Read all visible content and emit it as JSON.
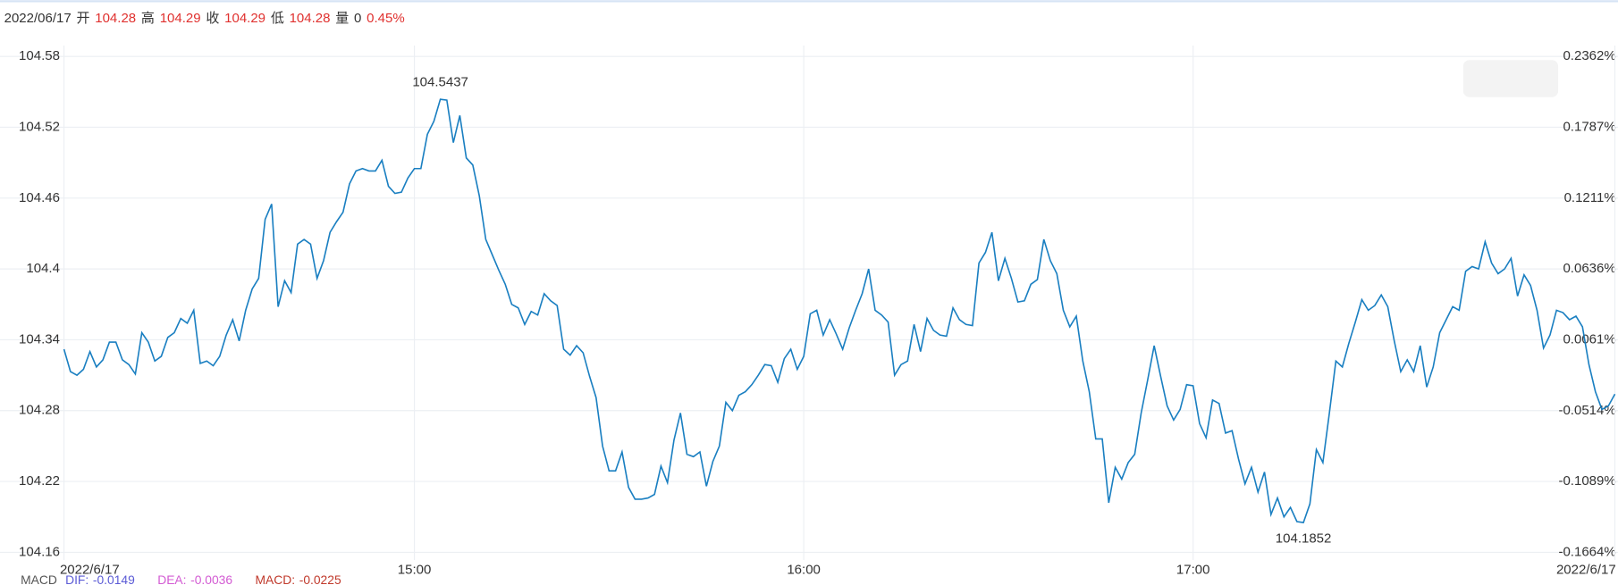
{
  "quote": {
    "date": "2022/06/17",
    "fields": [
      {
        "name": "开",
        "value": 104.28,
        "color": "#e0312f"
      },
      {
        "name": "高",
        "value": 104.29,
        "color": "#e0312f"
      },
      {
        "name": "收",
        "value": 104.29,
        "color": "#e0312f"
      },
      {
        "name": "低",
        "value": 104.28,
        "color": "#e0312f"
      },
      {
        "name": "量",
        "value": 0,
        "color": "#333333"
      }
    ],
    "change": {
      "value": 0.45,
      "label": "0.45%"
    }
  },
  "chart_data": {
    "type": "line",
    "color": "#1a7fc1",
    "grid": true,
    "up_color": "#e0312f",
    "down_color": "#1a9c1a",
    "values": [
      104.332,
      104.313,
      104.31,
      104.315,
      104.33,
      104.317,
      104.323,
      104.338,
      104.338,
      104.323,
      104.319,
      104.311,
      104.346,
      104.338,
      104.322,
      104.326,
      104.342,
      104.346,
      104.358,
      104.354,
      104.365,
      104.32,
      104.322,
      104.318,
      104.326,
      104.344,
      104.357,
      104.339,
      104.365,
      104.383,
      104.392,
      104.442,
      104.455,
      104.368,
      104.39,
      104.38,
      104.421,
      104.425,
      104.421,
      104.392,
      104.407,
      104.431,
      104.44,
      104.448,
      104.472,
      104.483,
      104.485,
      104.483,
      104.483,
      104.492,
      104.47,
      104.464,
      104.465,
      104.477,
      104.485,
      104.485,
      104.514,
      104.525,
      104.5437,
      104.543,
      104.507,
      104.53,
      104.494,
      104.488,
      104.462,
      104.425,
      104.412,
      104.399,
      104.387,
      104.37,
      104.367,
      104.353,
      104.364,
      104.361,
      104.379,
      104.373,
      104.369,
      104.332,
      104.327,
      104.335,
      104.329,
      104.309,
      104.291,
      104.25,
      104.229,
      104.229,
      104.245,
      104.215,
      104.205,
      104.205,
      104.206,
      104.209,
      104.233,
      104.219,
      104.255,
      104.278,
      104.243,
      104.241,
      104.245,
      104.216,
      104.237,
      104.25,
      104.287,
      104.28,
      104.293,
      104.296,
      104.302,
      104.31,
      104.319,
      104.318,
      104.304,
      104.324,
      104.332,
      104.315,
      104.326,
      104.362,
      104.365,
      104.344,
      104.357,
      104.345,
      104.332,
      104.35,
      104.365,
      104.379,
      104.4,
      104.365,
      104.361,
      104.355,
      104.31,
      104.319,
      104.322,
      104.353,
      104.33,
      104.358,
      104.348,
      104.344,
      104.343,
      104.367,
      104.357,
      104.353,
      104.352,
      104.405,
      104.414,
      104.431,
      104.39,
      104.409,
      104.392,
      104.372,
      104.373,
      104.387,
      104.391,
      104.425,
      104.407,
      104.396,
      104.365,
      104.351,
      104.36,
      104.322,
      104.296,
      104.256,
      104.256,
      104.202,
      104.232,
      104.222,
      104.236,
      104.243,
      104.278,
      104.306,
      104.335,
      104.309,
      104.284,
      104.272,
      104.281,
      104.302,
      104.301,
      104.269,
      104.257,
      104.289,
      104.286,
      104.261,
      104.263,
      104.239,
      104.218,
      104.232,
      104.211,
      104.228,
      104.192,
      104.206,
      104.19,
      104.198,
      104.186,
      104.1852,
      104.201,
      104.247,
      104.236,
      104.278,
      104.322,
      104.317,
      104.337,
      104.355,
      104.374,
      104.365,
      104.369,
      104.378,
      104.368,
      104.339,
      104.313,
      104.323,
      104.313,
      104.335,
      104.3,
      104.317,
      104.346,
      104.357,
      104.368,
      104.365,
      104.398,
      104.402,
      104.4,
      104.423,
      104.405,
      104.396,
      104.4,
      104.409,
      104.377,
      104.395,
      104.386,
      104.365,
      104.333,
      104.344,
      104.365,
      104.363,
      104.357,
      104.36,
      104.351,
      104.319,
      104.296,
      104.281,
      104.284,
      104.294
    ],
    "annotations": [
      "104.5437",
      "104.1852"
    ],
    "xlim": [
      0,
      239
    ],
    "xticks": [
      {
        "value": 0,
        "label": "2022/6/17"
      },
      {
        "value": 54,
        "label": "15:00"
      },
      {
        "value": 114,
        "label": "16:00"
      },
      {
        "value": 174,
        "label": "17:00"
      },
      {
        "value": 239,
        "label": "2022/6/17"
      }
    ],
    "ylim": [
      104.16,
      104.58
    ],
    "yticks": [
      104.58,
      104.52,
      104.46,
      104.4,
      104.34,
      104.28,
      104.22,
      104.16
    ],
    "y2lim": [
      -0.1664,
      0.2362
    ],
    "y2ticks": [
      {
        "value": 0.2362,
        "label": "0.2362%"
      },
      {
        "value": 0.1787,
        "label": "0.1787%"
      },
      {
        "value": 0.1211,
        "label": "0.1211%"
      },
      {
        "value": 0.0636,
        "label": "0.0636%"
      },
      {
        "value": 0.0061,
        "label": "0.0061%"
      },
      {
        "value": -0.0514,
        "label": "-0.0514%"
      },
      {
        "value": -0.1089,
        "label": "-0.1089%"
      },
      {
        "value": -0.1664,
        "label": "-0.1664%"
      }
    ]
  },
  "macd": {
    "name": "MACD",
    "fields": [
      {
        "name": "DIF:",
        "value": -0.0149,
        "color": "#5b5bd6"
      },
      {
        "name": "DEA:",
        "value": -0.0036,
        "color": "#d35bd3"
      },
      {
        "name": "MACD:",
        "value": -0.0225,
        "color": "#c0392b"
      }
    ]
  }
}
